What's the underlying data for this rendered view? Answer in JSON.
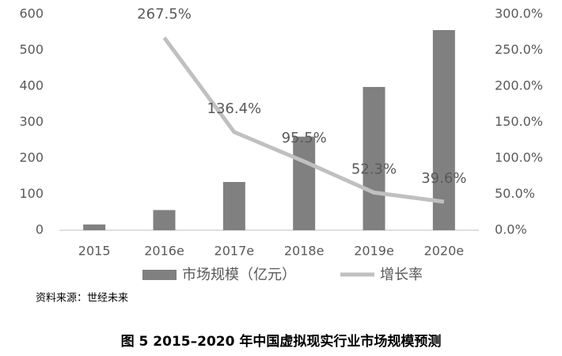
{
  "chart_data": {
    "type": "bar-line",
    "categories": [
      "2015",
      "2016e",
      "2017e",
      "2018e",
      "2019e",
      "2020e"
    ],
    "series": [
      {
        "name": "市场规模（亿元）",
        "color": "#808080",
        "type": "bar",
        "values": [
          16,
          56,
          134,
          260,
          398,
          556
        ]
      },
      {
        "name": "增长率",
        "color": "#c0c0c0",
        "type": "line",
        "axis": "y2",
        "values": [
          null,
          267.5,
          136.4,
          95.5,
          52.3,
          39.6
        ],
        "value_labels": [
          null,
          "267.5%",
          "136.4%",
          "95.5%",
          "52.3%",
          "39.6%"
        ]
      }
    ],
    "ylim": [
      0,
      600
    ],
    "yticks": [
      0,
      100,
      200,
      300,
      400,
      500,
      600
    ],
    "y2lim": [
      0,
      300
    ],
    "y2ticks": [
      {
        "value": 0,
        "label": "0.0%"
      },
      {
        "value": 50,
        "label": "50.0%"
      },
      {
        "value": 100,
        "label": "100.0%"
      },
      {
        "value": 150,
        "label": "150.0%"
      },
      {
        "value": 200,
        "label": "200.0%"
      },
      {
        "value": 250,
        "label": "250.0%"
      },
      {
        "value": 300,
        "label": "300.0%"
      }
    ],
    "grid": false,
    "legend": "bottom",
    "source": "资料来源：世经未来",
    "caption": "图 5 2015–2020 年中国虚拟现实行业市场规模预测"
  }
}
